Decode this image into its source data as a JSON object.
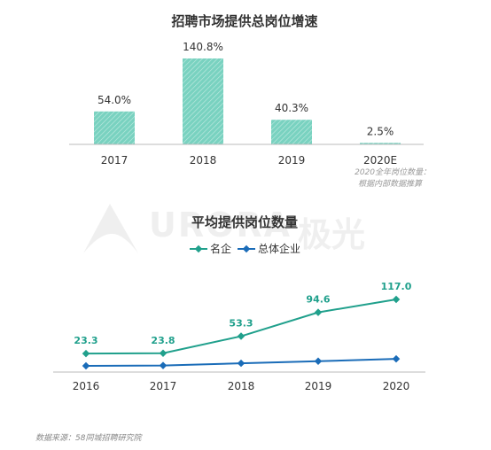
{
  "chart_data": [
    {
      "type": "bar",
      "title": "招聘市场提供总岗位增速",
      "categories": [
        "2017",
        "2018",
        "2019",
        "2020E"
      ],
      "values": [
        54.0,
        140.8,
        40.3,
        2.5
      ],
      "value_labels": [
        "54.0%",
        "140.8%",
        "40.3%",
        "2.5%"
      ],
      "bar_color": "#79d2c0",
      "note": [
        "2020全年岗位数量：",
        "根据内部数据推算"
      ]
    },
    {
      "type": "line",
      "title": "平均提供岗位数量",
      "x": [
        "2016",
        "2017",
        "2018",
        "2019",
        "2020"
      ],
      "series": [
        {
          "name": "名企",
          "values": [
            23.3,
            23.8,
            53.3,
            94.6,
            117.0
          ],
          "labels": [
            "23.3",
            "23.8",
            "53.3",
            "94.6",
            "117.0"
          ],
          "color": "#20a08c"
        },
        {
          "name": "总体企业",
          "values": [
            2.0,
            2.5,
            6.5,
            10.0,
            14.0
          ],
          "color": "#1a6cb8"
        }
      ],
      "legend": "top"
    }
  ],
  "watermark": {
    "brand_en": "URORA",
    "brand_cn": "极光"
  },
  "footer": {
    "source": "数据来源：58同城招聘研究院"
  }
}
